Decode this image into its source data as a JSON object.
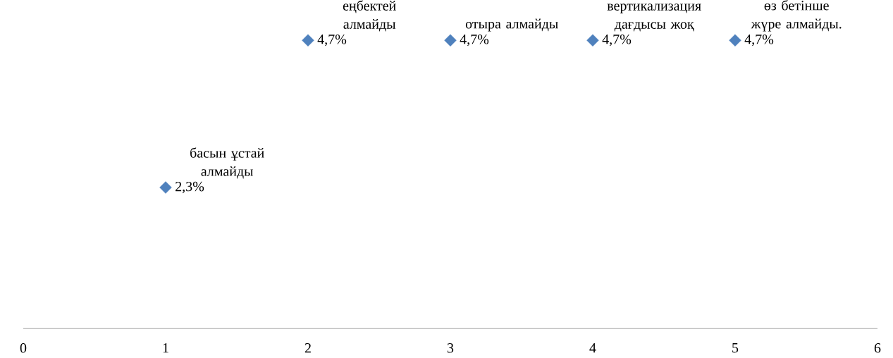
{
  "chart_data": {
    "type": "scatter",
    "x": [
      1,
      2,
      3,
      4,
      5
    ],
    "values": [
      2.3,
      4.7,
      4.7,
      4.7,
      4.7
    ],
    "color": "#4f81bd",
    "marker": "diamond",
    "value_labels": [
      "2,3%",
      "4,7%",
      "4,7%",
      "4,7%",
      "4,7%"
    ],
    "xlim": [
      0,
      6
    ],
    "xticks": [
      0,
      1,
      2,
      3,
      4,
      5,
      6
    ],
    "tick_labels": "x",
    "annotations": [
      {
        "text": "басын ұстай алмайды",
        "x": 1,
        "y": 2.3
      },
      {
        "text": "еңбектей алмайды",
        "x": 2,
        "y": 4.7
      },
      {
        "text": "отыра алмайды",
        "x": 3,
        "y": 4.7
      },
      {
        "text": "вертикализация дағдысы жоқ",
        "x": 4,
        "y": 4.7
      },
      {
        "text": "өз бетінше жүре алмайды.",
        "x": 5,
        "y": 4.7
      }
    ]
  }
}
